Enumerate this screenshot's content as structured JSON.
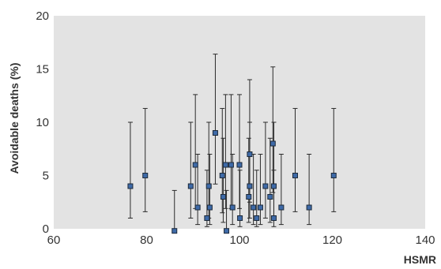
{
  "chart_data": {
    "type": "scatter",
    "xlabel": "HSMR",
    "ylabel": "Avoidable deaths (%)",
    "xlim": [
      60,
      140
    ],
    "ylim": [
      0,
      20
    ],
    "xticks": [
      60,
      80,
      100,
      120,
      140
    ],
    "yticks": [
      0,
      5,
      10,
      15,
      20
    ],
    "grid": false,
    "colors": {
      "plot_background": "#e3e3e3",
      "marker_fill": "#3e6aa8",
      "error_bar": "#2b2b2b"
    },
    "points": [
      {
        "x": 76.5,
        "y": 4.0,
        "low": 1.0,
        "high": 10.0
      },
      {
        "x": 79.7,
        "y": 5.0,
        "low": 1.6,
        "high": 11.3
      },
      {
        "x": 86.0,
        "y": -0.2,
        "low": -0.2,
        "high": 3.6
      },
      {
        "x": 89.5,
        "y": 4.0,
        "low": 1.0,
        "high": 10.0
      },
      {
        "x": 90.5,
        "y": 6.0,
        "low": 1.9,
        "high": 12.6
      },
      {
        "x": 91.0,
        "y": 2.0,
        "low": 0.4,
        "high": 7.0
      },
      {
        "x": 93.0,
        "y": 1.0,
        "low": 0.2,
        "high": 5.5
      },
      {
        "x": 93.4,
        "y": 4.0,
        "low": 1.0,
        "high": 10.0
      },
      {
        "x": 93.6,
        "y": 2.0,
        "low": 0.4,
        "high": 7.0
      },
      {
        "x": 94.8,
        "y": 9.0,
        "low": 4.2,
        "high": 16.4
      },
      {
        "x": 96.3,
        "y": 5.0,
        "low": 1.5,
        "high": 11.3
      },
      {
        "x": 96.5,
        "y": 3.0,
        "low": 0.6,
        "high": 8.5
      },
      {
        "x": 97.0,
        "y": 6.0,
        "low": 1.9,
        "high": 12.6
      },
      {
        "x": 97.2,
        "y": -0.2,
        "low": -0.2,
        "high": 3.6
      },
      {
        "x": 98.2,
        "y": 6.0,
        "low": 1.9,
        "high": 12.6
      },
      {
        "x": 98.5,
        "y": 2.0,
        "low": 0.4,
        "high": 7.0
      },
      {
        "x": 100.0,
        "y": 6.0,
        "low": 1.9,
        "high": 12.6
      },
      {
        "x": 100.1,
        "y": 1.0,
        "low": 0.2,
        "high": 5.5
      },
      {
        "x": 102.0,
        "y": 3.0,
        "low": 0.6,
        "high": 8.5
      },
      {
        "x": 102.2,
        "y": 7.0,
        "low": 2.5,
        "high": 14.0
      },
      {
        "x": 102.2,
        "y": 4.0,
        "low": 1.0,
        "high": 10.0
      },
      {
        "x": 103.0,
        "y": 2.0,
        "low": 0.4,
        "high": 7.0
      },
      {
        "x": 103.7,
        "y": 1.0,
        "low": 0.2,
        "high": 5.5
      },
      {
        "x": 104.5,
        "y": 2.0,
        "low": 0.4,
        "high": 7.0
      },
      {
        "x": 105.6,
        "y": 4.0,
        "low": 1.0,
        "high": 10.0
      },
      {
        "x": 106.6,
        "y": 3.0,
        "low": 0.6,
        "high": 8.5
      },
      {
        "x": 107.2,
        "y": 8.0,
        "low": 3.4,
        "high": 15.2
      },
      {
        "x": 107.4,
        "y": 4.0,
        "low": 1.0,
        "high": 10.0
      },
      {
        "x": 107.4,
        "y": 1.0,
        "low": 0.2,
        "high": 5.5
      },
      {
        "x": 109.0,
        "y": 2.0,
        "low": 0.4,
        "high": 7.0
      },
      {
        "x": 112.0,
        "y": 5.0,
        "low": 1.6,
        "high": 11.3
      },
      {
        "x": 115.0,
        "y": 2.0,
        "low": 0.4,
        "high": 7.0
      },
      {
        "x": 120.3,
        "y": 5.0,
        "low": 1.6,
        "high": 11.3
      }
    ]
  }
}
